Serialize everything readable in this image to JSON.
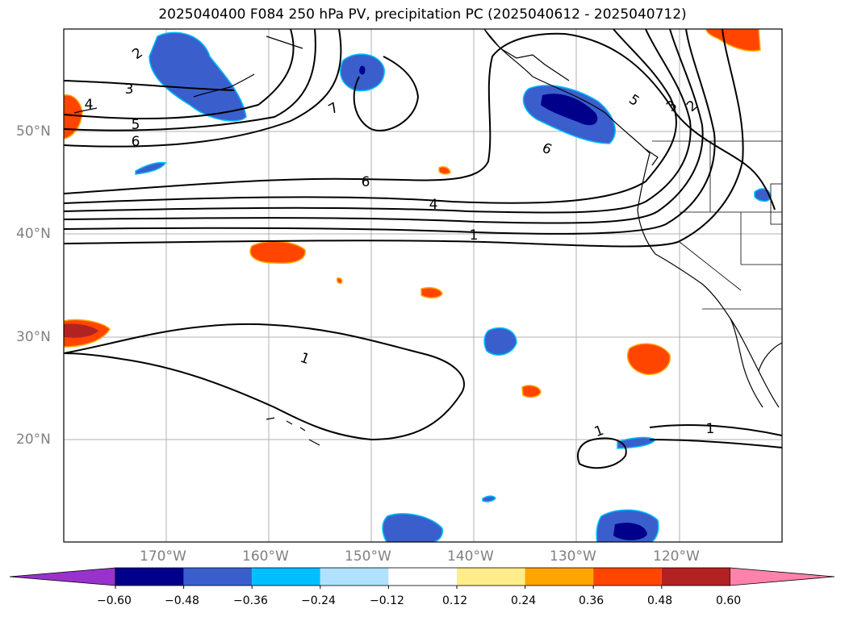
{
  "title": "2025040400 F084 250 hPa PV, precipitation PC (2025040612 - 2025040712)",
  "map": {
    "lat_labels": [
      "50°N",
      "40°N",
      "30°N",
      "20°N"
    ],
    "lon_labels": [
      "170°W",
      "160°W",
      "150°W",
      "140°W",
      "130°W",
      "120°W"
    ],
    "contour_labels": [
      "2",
      "3",
      "4",
      "5",
      "6",
      "7",
      "6",
      "6",
      "4",
      "1",
      "5",
      "3",
      "2",
      "6",
      "1",
      "1",
      "1"
    ]
  },
  "colorbar": {
    "colors": [
      "#9932cc",
      "#00008b",
      "#3a5fcd",
      "#00bfff",
      "#b0e2ff",
      "#ffffff",
      "#ffec8b",
      "#ffa500",
      "#ff4500",
      "#b22222",
      "#ff82ab"
    ],
    "tick_labels": [
      "−0.60",
      "−0.48",
      "−0.36",
      "−0.24",
      "−0.12",
      "0.12",
      "0.24",
      "0.36",
      "0.48",
      "0.60"
    ]
  }
}
